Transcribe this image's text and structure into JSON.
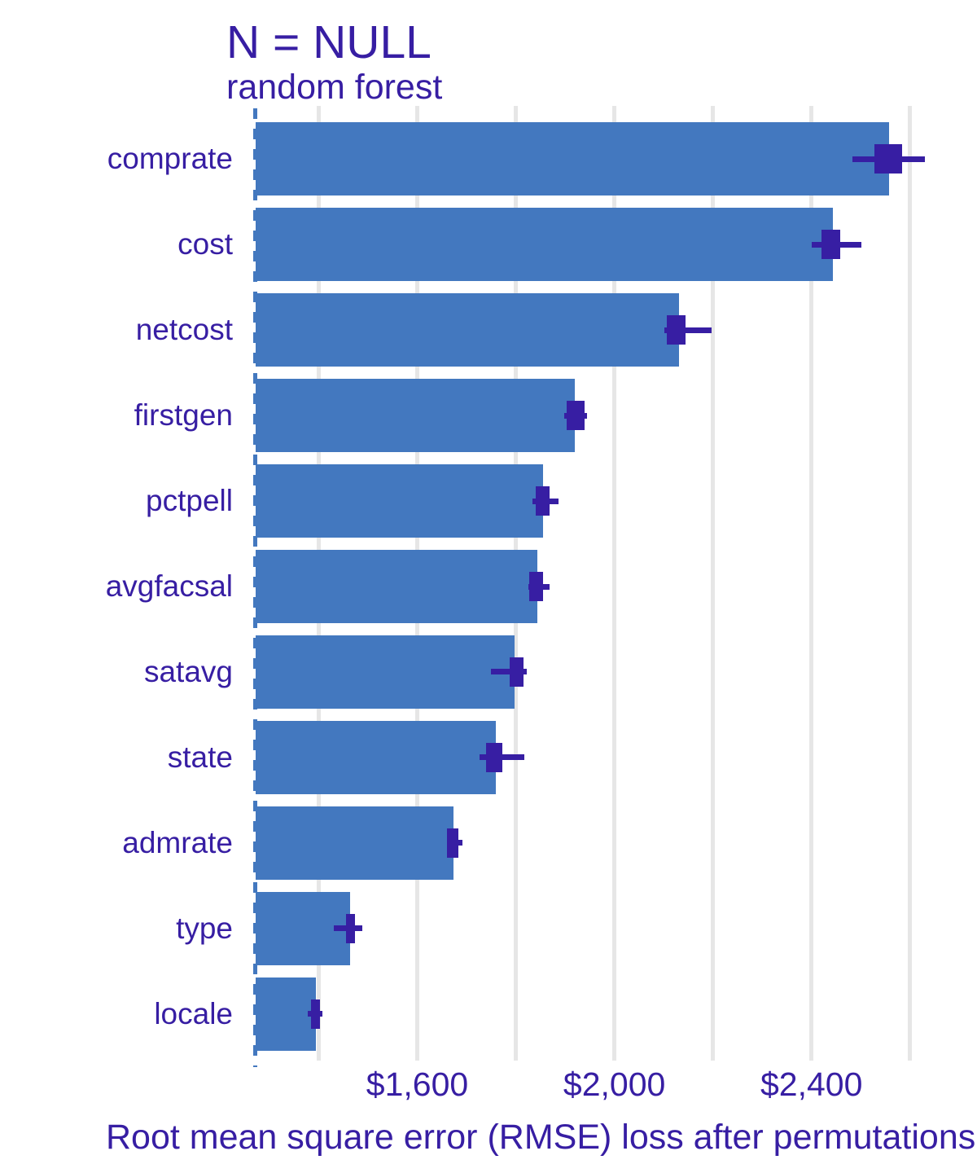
{
  "colors": {
    "bar": "#4378bf",
    "boxplot": "#371ea3",
    "text": "#371ea3",
    "gridline": "#e6e6e6",
    "baseline_dash": "#4378bf",
    "background": "#ffffff"
  },
  "chart_data": {
    "type": "bar",
    "orientation": "horizontal",
    "title": "N = NULL",
    "subtitle": "random forest",
    "xlabel": "Root mean square error (RMSE) loss after permutations",
    "ylabel": "",
    "legend": "none",
    "grid": "vertical-only",
    "baseline": 1272,
    "xlim": [
      1272,
      2737
    ],
    "gridline_values": [
      1400,
      1600,
      1800,
      2000,
      2200,
      2400,
      2600
    ],
    "x_ticks": [
      {
        "value": 1600,
        "label": "$1,600"
      },
      {
        "value": 2000,
        "label": "$2,000"
      },
      {
        "value": 2400,
        "label": "$2,400"
      }
    ],
    "categories": [
      "comprate",
      "cost",
      "netcost",
      "firstgen",
      "pctpell",
      "avgfacsal",
      "satavg",
      "state",
      "admrate",
      "type",
      "locale"
    ],
    "values": [
      2557,
      2443,
      2131,
      1919,
      1855,
      1843,
      1798,
      1759,
      1673,
      1464,
      1395
    ],
    "error_bars": [
      {
        "low": 2483,
        "high": 2630,
        "box_low": 2527,
        "box_high": 2584
      },
      {
        "low": 2400,
        "high": 2502,
        "box_low": 2421,
        "box_high": 2458
      },
      {
        "low": 2101,
        "high": 2198,
        "box_low": 2107,
        "box_high": 2144
      },
      {
        "low": 1898,
        "high": 1944,
        "box_low": 1904,
        "box_high": 1940
      },
      {
        "low": 1833,
        "high": 1886,
        "box_low": 1841,
        "box_high": 1869
      },
      {
        "low": 1825,
        "high": 1869,
        "box_low": 1828,
        "box_high": 1855
      },
      {
        "low": 1750,
        "high": 1823,
        "box_low": 1788,
        "box_high": 1815
      },
      {
        "low": 1726,
        "high": 1817,
        "box_low": 1739,
        "box_high": 1772
      },
      {
        "low": 1661,
        "high": 1691,
        "box_low": 1661,
        "box_high": 1683
      },
      {
        "low": 1431,
        "high": 1488,
        "box_low": 1456,
        "box_high": 1474
      },
      {
        "low": 1378,
        "high": 1408,
        "box_low": 1385,
        "box_high": 1403
      }
    ]
  }
}
